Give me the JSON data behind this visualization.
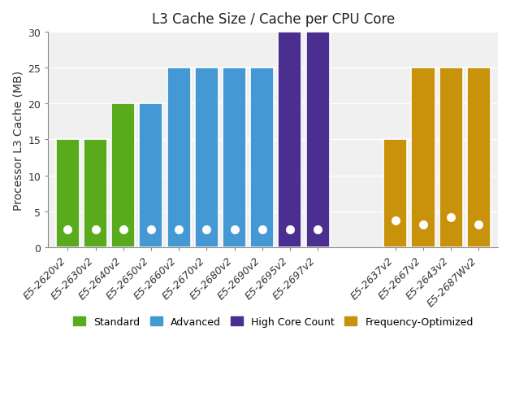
{
  "processors": [
    {
      "name": "E5-2620v2",
      "cache": 15,
      "cache_per_core": 2.5,
      "category": "Standard"
    },
    {
      "name": "E5-2630v2",
      "cache": 15,
      "cache_per_core": 2.5,
      "category": "Standard"
    },
    {
      "name": "E5-2640v2",
      "cache": 20,
      "cache_per_core": 2.5,
      "category": "Standard"
    },
    {
      "name": "E5-2650v2",
      "cache": 20,
      "cache_per_core": 2.5,
      "category": "Advanced"
    },
    {
      "name": "E5-2660v2",
      "cache": 25,
      "cache_per_core": 2.5,
      "category": "Advanced"
    },
    {
      "name": "E5-2670v2",
      "cache": 25,
      "cache_per_core": 2.5,
      "category": "Advanced"
    },
    {
      "name": "E5-2680v2",
      "cache": 25,
      "cache_per_core": 2.5,
      "category": "Advanced"
    },
    {
      "name": "E5-2690v2",
      "cache": 25,
      "cache_per_core": 2.5,
      "category": "Advanced"
    },
    {
      "name": "E5-2695v2",
      "cache": 30,
      "cache_per_core": 2.5,
      "category": "High Core Count"
    },
    {
      "name": "E5-2697v2",
      "cache": 30,
      "cache_per_core": 2.5,
      "category": "High Core Count"
    },
    {
      "name": "E5-2637v2",
      "cache": 15,
      "cache_per_core": 3.75,
      "category": "Frequency-Optimized"
    },
    {
      "name": "E5-2667v2",
      "cache": 25,
      "cache_per_core": 3.125,
      "category": "Frequency-Optimized"
    },
    {
      "name": "E5-2643v2",
      "cache": 25,
      "cache_per_core": 4.167,
      "category": "Frequency-Optimized"
    },
    {
      "name": "E5-2687Wv2",
      "cache": 25,
      "cache_per_core": 3.125,
      "category": "Frequency-Optimized"
    }
  ],
  "category_colors": {
    "Standard": "#5aaa1e",
    "Advanced": "#4499d4",
    "High Core Count": "#4a2f90",
    "Frequency-Optimized": "#c8920a"
  },
  "title": "L3 Cache Size / Cache per CPU Core",
  "ylabel": "Processor L3 Cache (MB)",
  "ylim": [
    0,
    30
  ],
  "yticks": [
    0,
    5,
    10,
    15,
    20,
    25,
    30
  ],
  "dot_color": "white",
  "dot_size": 55,
  "legend_categories": [
    "Standard",
    "Advanced",
    "High Core Count",
    "Frequency-Optimized"
  ],
  "bar_width": 0.85,
  "title_fontsize": 12,
  "label_fontsize": 10,
  "tick_fontsize": 9,
  "bg_color": "#f0f0f0",
  "grid_color": "white"
}
